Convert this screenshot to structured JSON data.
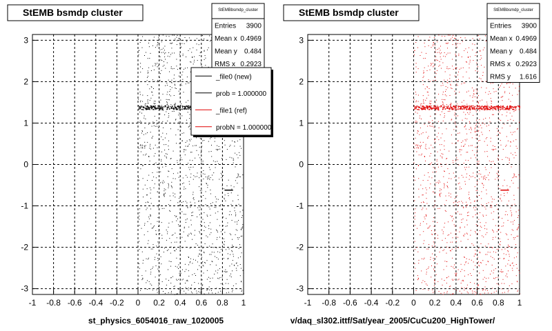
{
  "panels": [
    {
      "title": "StEMB bsmdp cluster",
      "xlabel": "st_physics_6054016_raw_1020005",
      "stats": {
        "name": "StEMBbsmdp_cluster",
        "rows": [
          {
            "label": "Entries",
            "value": "3900"
          },
          {
            "label": "Mean x",
            "value": "0.4969"
          },
          {
            "label": "Mean y",
            "value": "0.484"
          },
          {
            "label": "RMS x",
            "value": "0.2923"
          }
        ]
      },
      "legend": [
        {
          "label": "_file0 (new)",
          "color": "#000000"
        },
        {
          "label": "prob = 1.000000",
          "color": "#000000"
        },
        {
          "label": "_file1 (ref)",
          "color": "#e00000"
        },
        {
          "label": "probN = 1.000000",
          "color": "#e00000"
        }
      ],
      "color": "#000000"
    },
    {
      "title": "StEMB bsmdp cluster",
      "xlabel": "v/daq_sl302.ittf/Sat/year_2005/CuCu200_HighTower/",
      "stats": {
        "name": "StEMBbsmdp_cluster",
        "rows": [
          {
            "label": "Entries",
            "value": "3900"
          },
          {
            "label": "Mean x",
            "value": "0.4969"
          },
          {
            "label": "Mean y",
            "value": "0.484"
          },
          {
            "label": "RMS x",
            "value": "0.2923"
          },
          {
            "label": "RMS y",
            "value": "1.616"
          }
        ]
      },
      "legend": [],
      "color": "#e00000"
    }
  ],
  "chart_data": [
    {
      "type": "scatter",
      "title": "StEMB bsmdp cluster",
      "xlabel": "st_physics_6054016_raw_1020005",
      "xlim": [
        -1,
        1
      ],
      "ylim": [
        -3.14,
        3.14
      ],
      "xticks": [
        -1,
        -0.8,
        -0.6,
        -0.4,
        -0.2,
        0,
        0.2,
        0.4,
        0.6,
        0.8,
        1
      ],
      "yticks": [
        -3,
        -2,
        -1,
        0,
        1,
        2,
        3
      ],
      "grid": true,
      "series": [
        {
          "name": "_file0 (new)",
          "color": "#000000",
          "x_range": [
            0,
            1
          ],
          "y_range": [
            -3.14,
            3.14
          ],
          "dense_band_y": 1.38,
          "short_segment": {
            "x": [
              0.82,
              0.9
            ],
            "y": -0.62
          }
        }
      ]
    },
    {
      "type": "scatter",
      "title": "StEMB bsmdp cluster",
      "xlabel": "v/daq_sl302.ittf/Sat/year_2005/CuCu200_HighTower/",
      "xlim": [
        -1,
        1
      ],
      "ylim": [
        -3.14,
        3.14
      ],
      "xticks": [
        -1,
        -0.8,
        -0.6,
        -0.4,
        -0.2,
        0,
        0.2,
        0.4,
        0.6,
        0.8,
        1
      ],
      "yticks": [
        -3,
        -2,
        -1,
        0,
        1,
        2,
        3
      ],
      "grid": true,
      "series": [
        {
          "name": "_file1 (ref)",
          "color": "#e00000",
          "x_range": [
            0,
            1
          ],
          "y_range": [
            -3.14,
            3.14
          ],
          "dense_band_y": 1.38,
          "short_segment": {
            "x": [
              0.82,
              0.9
            ],
            "y": -0.62
          }
        }
      ]
    }
  ]
}
